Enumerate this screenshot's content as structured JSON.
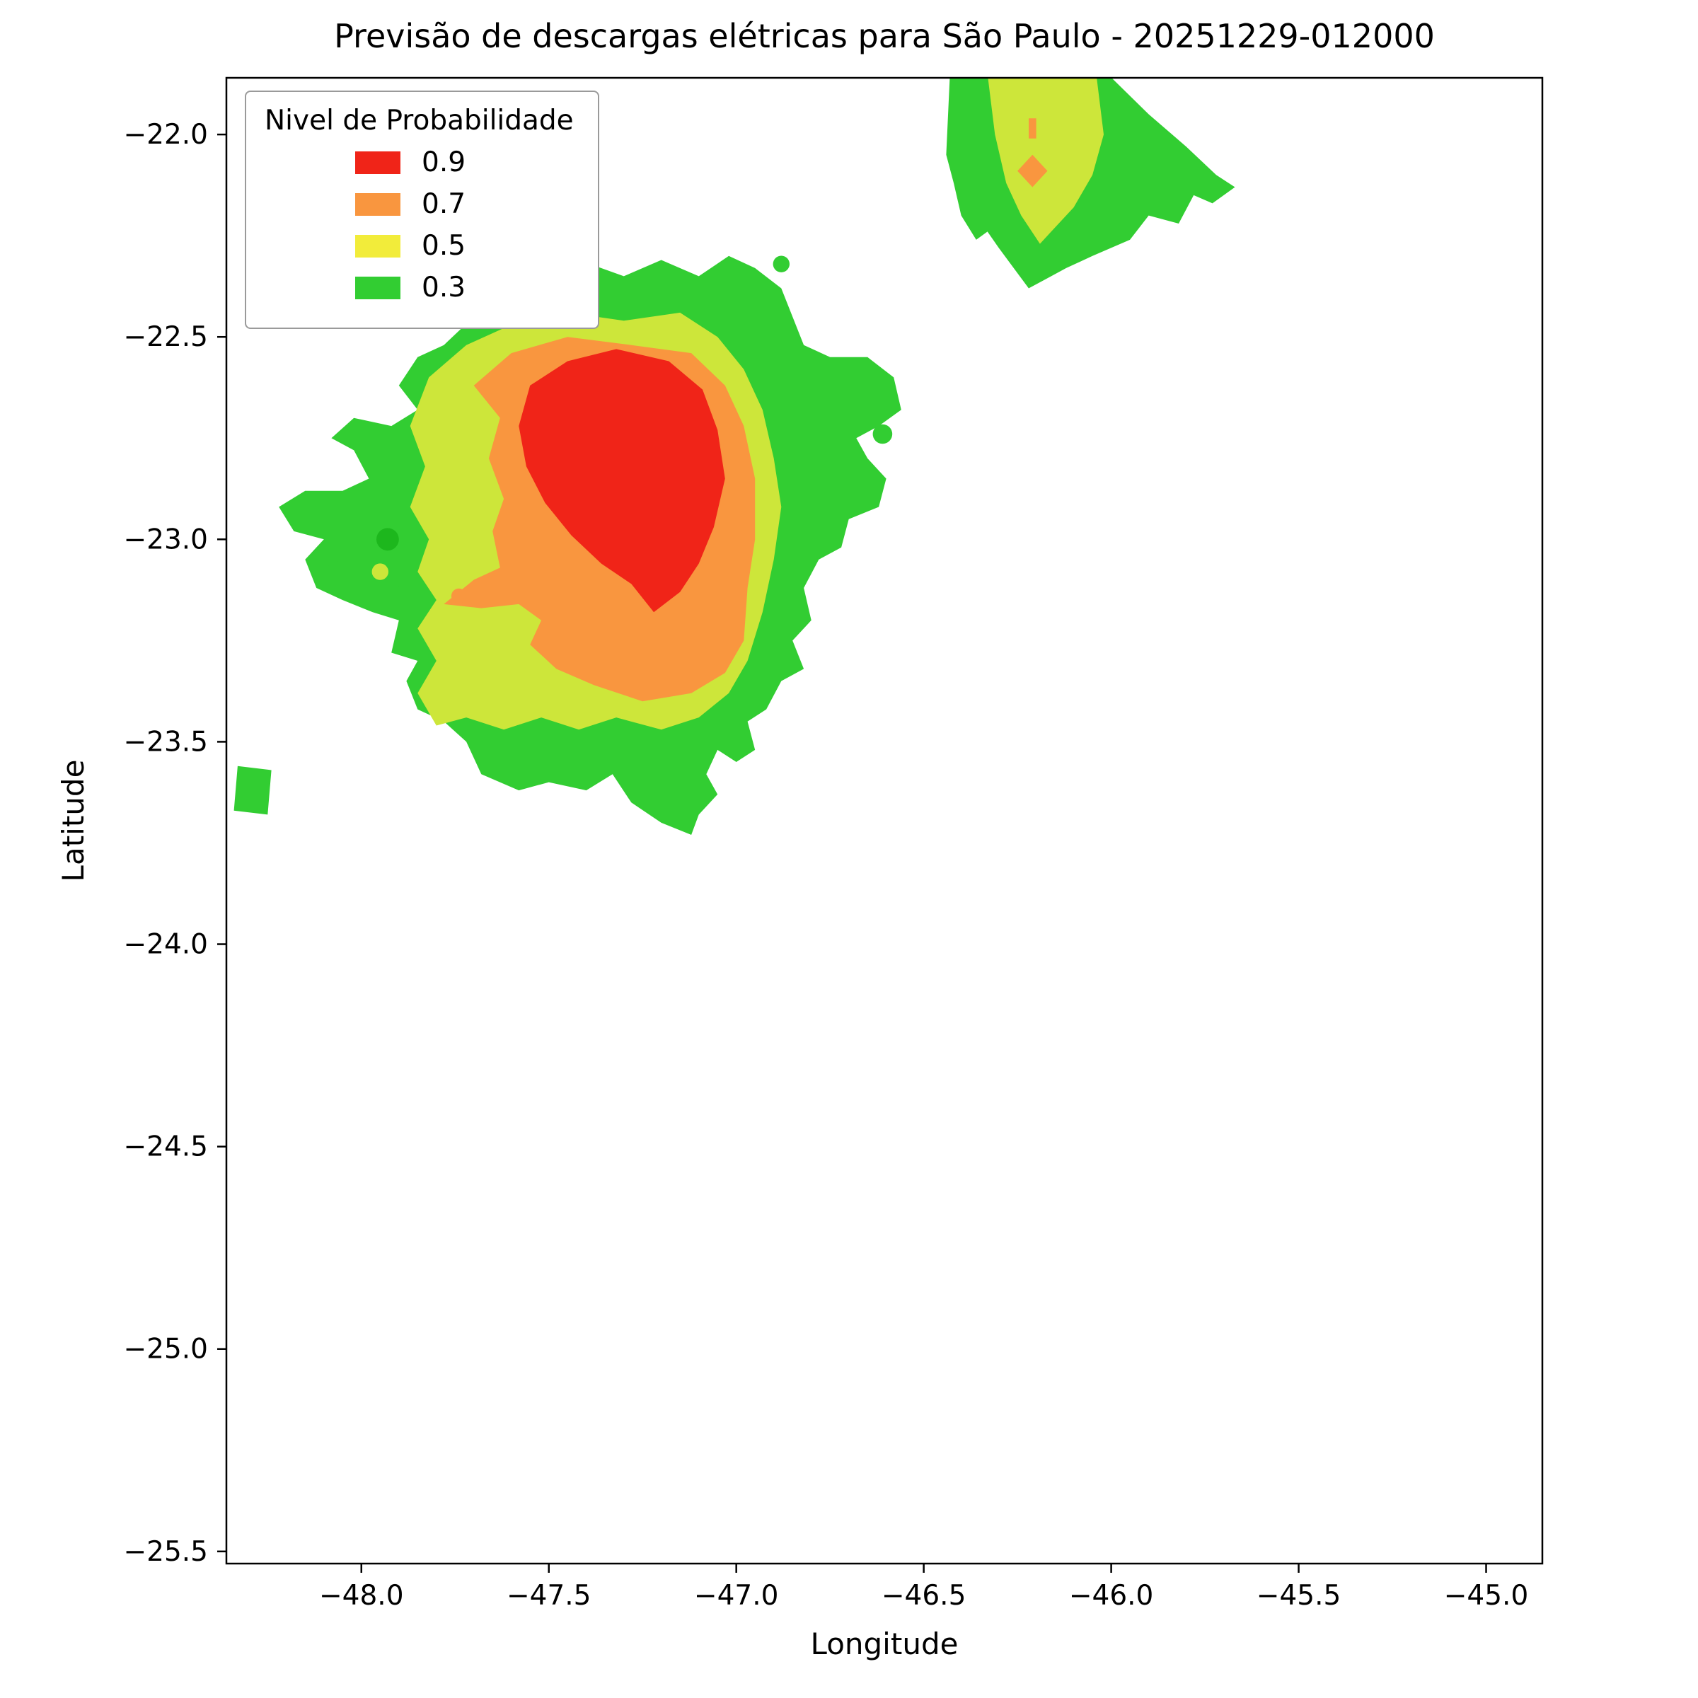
{
  "legend": {
    "title": "Nivel de Probabilidade",
    "items": [
      {
        "label": "0.9",
        "color": "#f02418"
      },
      {
        "label": "0.7",
        "color": "#f9963f"
      },
      {
        "label": "0.5",
        "color": "#f2ec3a"
      },
      {
        "label": "0.3",
        "color": "#32cd32"
      }
    ]
  },
  "chart_data": {
    "type": "contour",
    "title": "Previsão de descargas elétricas para São Paulo - 20251229-012000",
    "xlabel": "Longitude",
    "ylabel": "Latitude",
    "xlim": [
      -48.36,
      -44.85
    ],
    "ylim": [
      -25.53,
      -21.86
    ],
    "xticks": [
      -48.0,
      -47.5,
      -47.0,
      -46.5,
      -46.0,
      -45.5,
      -45.0
    ],
    "yticks": [
      -22.0,
      -22.5,
      -23.0,
      -23.5,
      -24.0,
      -24.5,
      -25.0,
      -25.5
    ],
    "legend_position": "upper left",
    "grid": false,
    "levels": [
      {
        "value": 0.9,
        "color": "#f02418"
      },
      {
        "value": 0.7,
        "color": "#f9963f"
      },
      {
        "value": 0.5,
        "color": "#f2ec3a"
      },
      {
        "value": 0.3,
        "color": "#32cd32"
      }
    ],
    "regions": [
      {
        "name": "main-storm-green",
        "level": 0.3,
        "fill": "#32cd32",
        "points": [
          [
            -47.78,
            -22.52
          ],
          [
            -47.7,
            -22.45
          ],
          [
            -47.62,
            -22.38
          ],
          [
            -47.5,
            -22.35
          ],
          [
            -47.42,
            -22.31
          ],
          [
            -47.3,
            -22.35
          ],
          [
            -47.2,
            -22.31
          ],
          [
            -47.1,
            -22.35
          ],
          [
            -47.02,
            -22.3
          ],
          [
            -46.95,
            -22.33
          ],
          [
            -46.88,
            -22.38
          ],
          [
            -46.85,
            -22.45
          ],
          [
            -46.82,
            -22.52
          ],
          [
            -46.75,
            -22.55
          ],
          [
            -46.65,
            -22.55
          ],
          [
            -46.58,
            -22.6
          ],
          [
            -46.56,
            -22.68
          ],
          [
            -46.62,
            -22.72
          ],
          [
            -46.68,
            -22.75
          ],
          [
            -46.65,
            -22.8
          ],
          [
            -46.6,
            -22.85
          ],
          [
            -46.62,
            -22.92
          ],
          [
            -46.7,
            -22.95
          ],
          [
            -46.72,
            -23.02
          ],
          [
            -46.78,
            -23.05
          ],
          [
            -46.82,
            -23.12
          ],
          [
            -46.8,
            -23.2
          ],
          [
            -46.85,
            -23.25
          ],
          [
            -46.82,
            -23.32
          ],
          [
            -46.88,
            -23.35
          ],
          [
            -46.92,
            -23.42
          ],
          [
            -46.97,
            -23.45
          ],
          [
            -46.95,
            -23.52
          ],
          [
            -47.0,
            -23.55
          ],
          [
            -47.05,
            -23.52
          ],
          [
            -47.08,
            -23.58
          ],
          [
            -47.05,
            -23.63
          ],
          [
            -47.1,
            -23.68
          ],
          [
            -47.12,
            -23.73
          ],
          [
            -47.2,
            -23.7
          ],
          [
            -47.28,
            -23.65
          ],
          [
            -47.33,
            -23.58
          ],
          [
            -47.4,
            -23.62
          ],
          [
            -47.5,
            -23.6
          ],
          [
            -47.58,
            -23.62
          ],
          [
            -47.68,
            -23.58
          ],
          [
            -47.72,
            -23.5
          ],
          [
            -47.78,
            -23.45
          ],
          [
            -47.85,
            -23.42
          ],
          [
            -47.88,
            -23.35
          ],
          [
            -47.85,
            -23.3
          ],
          [
            -47.92,
            -23.28
          ],
          [
            -47.9,
            -23.2
          ],
          [
            -47.97,
            -23.18
          ],
          [
            -48.05,
            -23.15
          ],
          [
            -48.12,
            -23.12
          ],
          [
            -48.15,
            -23.05
          ],
          [
            -48.1,
            -23.0
          ],
          [
            -48.18,
            -22.98
          ],
          [
            -48.22,
            -22.92
          ],
          [
            -48.15,
            -22.88
          ],
          [
            -48.05,
            -22.88
          ],
          [
            -47.98,
            -22.85
          ],
          [
            -48.02,
            -22.78
          ],
          [
            -48.08,
            -22.75
          ],
          [
            -48.02,
            -22.7
          ],
          [
            -47.92,
            -22.72
          ],
          [
            -47.85,
            -22.68
          ],
          [
            -47.9,
            -22.62
          ],
          [
            -47.85,
            -22.55
          ]
        ]
      },
      {
        "name": "pale-halo",
        "level": 0.1,
        "fill": "#e4f3dd",
        "points": [
          [
            -47.68,
            -22.3
          ],
          [
            -47.56,
            -22.26
          ],
          [
            -47.45,
            -22.29
          ],
          [
            -47.37,
            -22.35
          ],
          [
            -47.41,
            -22.43
          ],
          [
            -47.52,
            -22.47
          ],
          [
            -47.63,
            -22.44
          ],
          [
            -47.69,
            -22.37
          ]
        ]
      },
      {
        "name": "main-storm-yellow",
        "level": 0.5,
        "fill": "#cde63a",
        "points": [
          [
            -47.82,
            -22.6
          ],
          [
            -47.72,
            -22.52
          ],
          [
            -47.6,
            -22.47
          ],
          [
            -47.45,
            -22.44
          ],
          [
            -47.3,
            -22.46
          ],
          [
            -47.15,
            -22.44
          ],
          [
            -47.05,
            -22.5
          ],
          [
            -46.98,
            -22.58
          ],
          [
            -46.93,
            -22.68
          ],
          [
            -46.9,
            -22.8
          ],
          [
            -46.88,
            -22.92
          ],
          [
            -46.9,
            -23.05
          ],
          [
            -46.93,
            -23.18
          ],
          [
            -46.97,
            -23.3
          ],
          [
            -47.02,
            -23.38
          ],
          [
            -47.1,
            -23.44
          ],
          [
            -47.2,
            -23.47
          ],
          [
            -47.32,
            -23.44
          ],
          [
            -47.42,
            -23.47
          ],
          [
            -47.52,
            -23.44
          ],
          [
            -47.62,
            -23.47
          ],
          [
            -47.72,
            -23.44
          ],
          [
            -47.8,
            -23.46
          ],
          [
            -47.85,
            -23.38
          ],
          [
            -47.8,
            -23.3
          ],
          [
            -47.85,
            -23.22
          ],
          [
            -47.8,
            -23.15
          ],
          [
            -47.85,
            -23.08
          ],
          [
            -47.82,
            -23.0
          ],
          [
            -47.87,
            -22.92
          ],
          [
            -47.83,
            -22.82
          ],
          [
            -47.87,
            -22.72
          ]
        ]
      },
      {
        "name": "main-storm-orange",
        "level": 0.7,
        "fill": "#f9963f",
        "points": [
          [
            -47.7,
            -22.62
          ],
          [
            -47.6,
            -22.54
          ],
          [
            -47.45,
            -22.5
          ],
          [
            -47.28,
            -22.52
          ],
          [
            -47.12,
            -22.54
          ],
          [
            -47.03,
            -22.62
          ],
          [
            -46.98,
            -22.72
          ],
          [
            -46.95,
            -22.85
          ],
          [
            -46.95,
            -23.0
          ],
          [
            -46.97,
            -23.12
          ],
          [
            -46.98,
            -23.25
          ],
          [
            -47.03,
            -23.33
          ],
          [
            -47.12,
            -23.38
          ],
          [
            -47.25,
            -23.4
          ],
          [
            -47.38,
            -23.36
          ],
          [
            -47.48,
            -23.32
          ],
          [
            -47.55,
            -23.26
          ],
          [
            -47.52,
            -23.2
          ],
          [
            -47.58,
            -23.16
          ],
          [
            -47.68,
            -23.17
          ],
          [
            -47.78,
            -23.16
          ],
          [
            -47.7,
            -23.1
          ],
          [
            -47.63,
            -23.07
          ],
          [
            -47.65,
            -22.98
          ],
          [
            -47.62,
            -22.9
          ],
          [
            -47.66,
            -22.8
          ],
          [
            -47.63,
            -22.7
          ]
        ]
      },
      {
        "name": "main-storm-red",
        "level": 0.9,
        "fill": "#f02418",
        "points": [
          [
            -47.55,
            -22.62
          ],
          [
            -47.45,
            -22.56
          ],
          [
            -47.32,
            -22.53
          ],
          [
            -47.18,
            -22.56
          ],
          [
            -47.09,
            -22.63
          ],
          [
            -47.05,
            -22.73
          ],
          [
            -47.03,
            -22.85
          ],
          [
            -47.06,
            -22.97
          ],
          [
            -47.1,
            -23.06
          ],
          [
            -47.15,
            -23.13
          ],
          [
            -47.22,
            -23.18
          ],
          [
            -47.28,
            -23.11
          ],
          [
            -47.36,
            -23.06
          ],
          [
            -47.44,
            -22.99
          ],
          [
            -47.51,
            -22.91
          ],
          [
            -47.56,
            -22.82
          ],
          [
            -47.58,
            -22.72
          ]
        ]
      },
      {
        "name": "west-island-green",
        "level": 0.3,
        "fill": "#32cd32",
        "points": [
          [
            -48.33,
            -23.56
          ],
          [
            -48.24,
            -23.57
          ],
          [
            -48.25,
            -23.68
          ],
          [
            -48.34,
            -23.67
          ]
        ]
      },
      {
        "name": "northeast-cell-green",
        "level": 0.3,
        "fill": "#32cd32",
        "points": [
          [
            -46.43,
            -21.85
          ],
          [
            -46.01,
            -21.85
          ],
          [
            -45.9,
            -21.95
          ],
          [
            -45.8,
            -22.03
          ],
          [
            -45.72,
            -22.1
          ],
          [
            -45.67,
            -22.13
          ],
          [
            -45.73,
            -22.17
          ],
          [
            -45.78,
            -22.15
          ],
          [
            -45.82,
            -22.22
          ],
          [
            -45.9,
            -22.2
          ],
          [
            -45.95,
            -22.26
          ],
          [
            -46.05,
            -22.3
          ],
          [
            -46.12,
            -22.33
          ],
          [
            -46.18,
            -22.36
          ],
          [
            -46.22,
            -22.38
          ],
          [
            -46.3,
            -22.28
          ],
          [
            -46.33,
            -22.24
          ],
          [
            -46.36,
            -22.26
          ],
          [
            -46.4,
            -22.2
          ],
          [
            -46.42,
            -22.12
          ],
          [
            -46.44,
            -22.05
          ]
        ]
      },
      {
        "name": "northeast-cell-yellow",
        "level": 0.5,
        "fill": "#cde63a",
        "points": [
          [
            -46.33,
            -21.85
          ],
          [
            -46.04,
            -21.85
          ],
          [
            -46.02,
            -22.0
          ],
          [
            -46.05,
            -22.1
          ],
          [
            -46.1,
            -22.18
          ],
          [
            -46.16,
            -22.24
          ],
          [
            -46.19,
            -22.27
          ],
          [
            -46.24,
            -22.2
          ],
          [
            -46.28,
            -22.12
          ],
          [
            -46.31,
            -22.0
          ]
        ]
      },
      {
        "name": "northeast-cell-orange-core",
        "level": 0.7,
        "fill": "#f9963f",
        "points": [
          [
            -46.21,
            -22.05
          ],
          [
            -46.17,
            -22.09
          ],
          [
            -46.21,
            -22.13
          ],
          [
            -46.25,
            -22.09
          ]
        ]
      },
      {
        "name": "northeast-cell-orange-speck",
        "level": 0.7,
        "fill": "#f9963f",
        "points": [
          [
            -46.22,
            -21.96
          ],
          [
            -46.2,
            -21.96
          ],
          [
            -46.2,
            -22.01
          ],
          [
            -46.22,
            -22.01
          ]
        ]
      }
    ],
    "spots": [
      {
        "name": "green-dot-west",
        "level": 0.3,
        "fill": "#1db71d",
        "lon": -47.93,
        "lat": -23.0,
        "r": 0.03
      },
      {
        "name": "yellow-dot-west",
        "level": 0.5,
        "fill": "#cde63a",
        "lon": -47.95,
        "lat": -23.08,
        "r": 0.022
      },
      {
        "name": "green-dot-north",
        "level": 0.3,
        "fill": "#32cd32",
        "lon": -46.88,
        "lat": -22.32,
        "r": 0.022
      },
      {
        "name": "green-dot-east",
        "level": 0.3,
        "fill": "#32cd32",
        "lon": -46.61,
        "lat": -22.74,
        "r": 0.026
      },
      {
        "name": "orange-dot-southwest",
        "level": 0.7,
        "fill": "#f9963f",
        "lon": -47.74,
        "lat": -23.14,
        "r": 0.02
      },
      {
        "name": "green-speck-far-west",
        "level": 0.3,
        "fill": "#32cd32",
        "lon": -48.07,
        "lat": -23.07,
        "r": 0.018
      },
      {
        "name": "green-speck-southwest",
        "level": 0.3,
        "fill": "#32cd32",
        "lon": -47.91,
        "lat": -23.13,
        "r": 0.018
      }
    ]
  }
}
